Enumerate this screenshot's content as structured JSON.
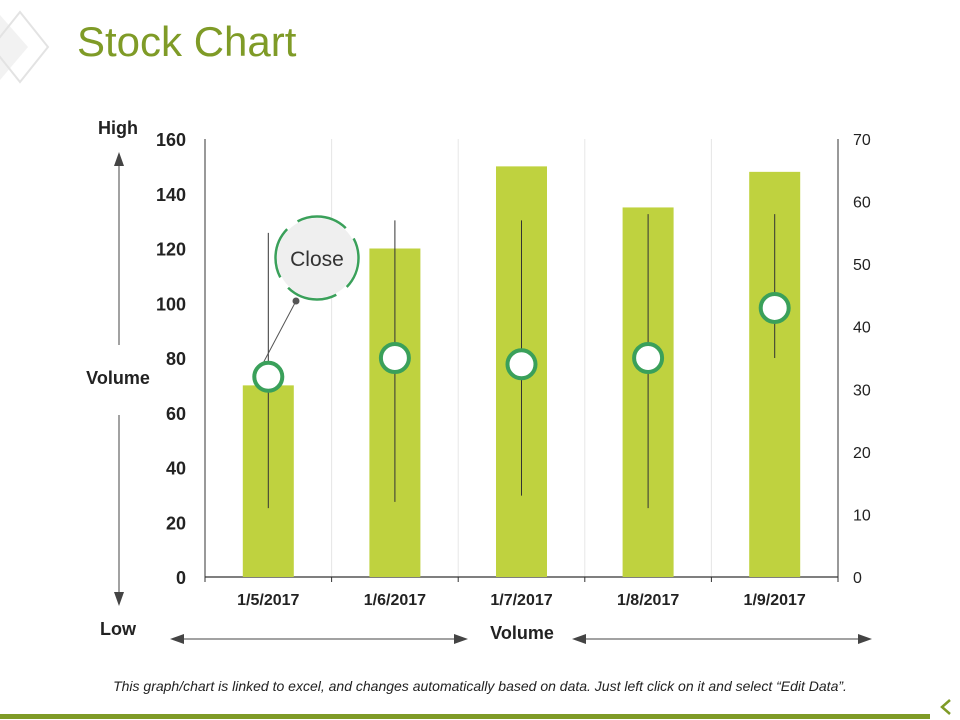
{
  "title": "Stock Chart",
  "footnote": "This graph/chart is linked to excel, and changes automatically based on data. Just left click on it and select “Edit Data”.",
  "colors": {
    "accent": "#7f9b27",
    "bar": "#bfd23f",
    "marker_ring": "#3aa05a",
    "callout_ring": "#3aa05a",
    "grid": "#e6e6e6"
  },
  "chart_data": {
    "type": "bar",
    "categories": [
      "1/5/2017",
      "1/6/2017",
      "1/7/2017",
      "1/8/2017",
      "1/9/2017"
    ],
    "volume": [
      70,
      120,
      150,
      135,
      148
    ],
    "high": [
      55,
      57,
      57,
      58,
      58
    ],
    "low": [
      11,
      12,
      13,
      11,
      35
    ],
    "close": [
      32,
      35,
      34,
      35,
      43
    ],
    "left_axis": {
      "ylim": [
        0,
        160
      ],
      "ticks": [
        0,
        20,
        40,
        60,
        80,
        100,
        120,
        140,
        160
      ]
    },
    "right_axis": {
      "ylim": [
        0,
        70
      ],
      "ticks": [
        0,
        10,
        20,
        30,
        40,
        50,
        60,
        70
      ]
    },
    "labels": {
      "high": "High",
      "low": "Low",
      "volume_left": "Volume",
      "volume_bottom": "Volume",
      "close_callout": "Close"
    }
  }
}
